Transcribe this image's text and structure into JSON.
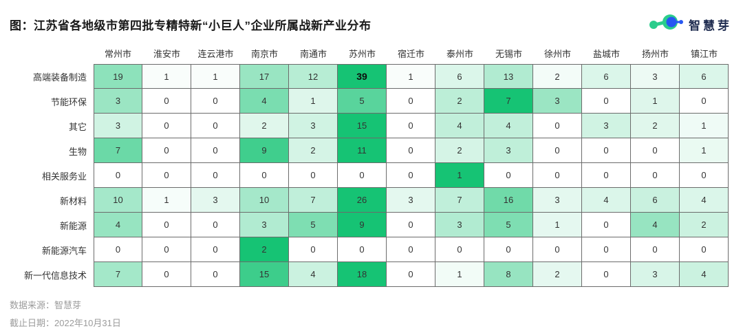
{
  "title": "图：江苏省各地级市第四批专精特新“小巨人”企业所属战新产业分布",
  "logo": {
    "text": "智慧芽",
    "green": "#2BCD8C",
    "blue": "#2757F2"
  },
  "footer": {
    "source": "数据来源：智慧芽",
    "cutoff": "截止日期：2022年10月31日"
  },
  "colors": {
    "cell_max_green": "#16C374",
    "cell_min_white": "#FFFFFF",
    "grid_border": "#6B6B6B",
    "cell_text": "#333333",
    "title_text": "#1A1A1A",
    "footer_text": "#9B9B9B"
  },
  "chart_data": {
    "type": "heatmap",
    "title": "图：江苏省各地级市第四批专精特新“小巨人”企业所属战新产业分布",
    "categories": [
      "常州市",
      "淮安市",
      "连云港市",
      "南京市",
      "南通市",
      "苏州市",
      "宿迁市",
      "泰州市",
      "无锡市",
      "徐州市",
      "盐城市",
      "扬州市",
      "镇江市"
    ],
    "rows": [
      {
        "name": "高端装备制造",
        "values": [
          19,
          1,
          1,
          17,
          12,
          39,
          1,
          6,
          13,
          2,
          6,
          3,
          6
        ]
      },
      {
        "name": "节能环保",
        "values": [
          3,
          0,
          0,
          4,
          1,
          5,
          0,
          2,
          7,
          3,
          0,
          1,
          0
        ]
      },
      {
        "name": "其它",
        "values": [
          3,
          0,
          0,
          2,
          3,
          15,
          0,
          4,
          4,
          0,
          3,
          2,
          1
        ]
      },
      {
        "name": "生物",
        "values": [
          7,
          0,
          0,
          9,
          2,
          11,
          0,
          2,
          3,
          0,
          0,
          0,
          1
        ]
      },
      {
        "name": "相关服务业",
        "values": [
          0,
          0,
          0,
          0,
          0,
          0,
          0,
          1,
          0,
          0,
          0,
          0,
          0
        ]
      },
      {
        "name": "新材料",
        "values": [
          10,
          1,
          3,
          10,
          7,
          26,
          3,
          7,
          16,
          3,
          4,
          6,
          4
        ]
      },
      {
        "name": "新能源",
        "values": [
          4,
          0,
          0,
          3,
          5,
          9,
          0,
          3,
          5,
          1,
          0,
          4,
          2
        ]
      },
      {
        "name": "新能源汽车",
        "values": [
          0,
          0,
          0,
          2,
          0,
          0,
          0,
          0,
          0,
          0,
          0,
          0,
          0
        ]
      },
      {
        "name": "新一代信息技术",
        "values": [
          7,
          0,
          0,
          15,
          4,
          18,
          0,
          1,
          8,
          2,
          0,
          3,
          4
        ]
      }
    ],
    "color_scale": {
      "normalization": "per-row",
      "min_color": "#FFFFFF",
      "max_color": "#16C374"
    },
    "emphasized_value": 39,
    "legend": "none",
    "grid": true
  }
}
